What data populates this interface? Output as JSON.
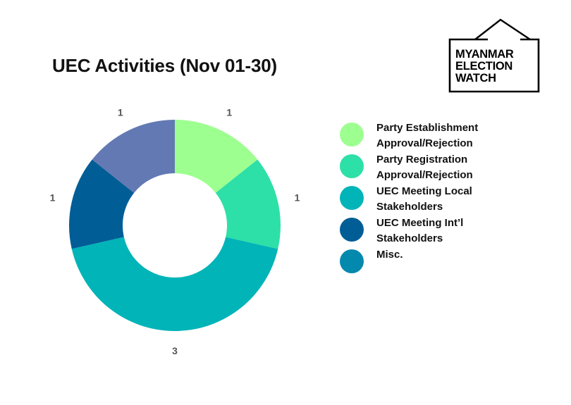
{
  "chart_data": {
    "type": "pie",
    "title": "UEC Activities (Nov 01-30)",
    "series": [
      {
        "name": "Party Establishment Approval/Rejection",
        "value": 1,
        "color": "#9eff91"
      },
      {
        "name": "Party Registration Approval/Rejection",
        "value": 1,
        "color": "#2de0a7"
      },
      {
        "name": "UEC Meeting Local Stakeholders",
        "value": 3,
        "color": "#01b4b8"
      },
      {
        "name": "UEC Meeting Int’l Stakeholders",
        "value": 1,
        "color": "#005d96"
      },
      {
        "name": "Misc.",
        "value": 1,
        "color": "#6379b3"
      }
    ],
    "legend_labels": [
      {
        "line1": "Party Establishment",
        "line2": "Approval/Rejection",
        "color": "#9eff91"
      },
      {
        "line1": "Party Registration",
        "line2": "Approval/Rejection",
        "color": "#2de0a7"
      },
      {
        "line1": "UEC Meeting Local",
        "line2": "Stakeholders",
        "color": "#01b4b8"
      },
      {
        "line1": "UEC Meeting Int’l",
        "line2": "Stakeholders",
        "color": "#005d96"
      },
      {
        "line1": "Misc.",
        "line2": "",
        "color": "#0289ad"
      }
    ],
    "legend_position": "right",
    "hole": "donut"
  },
  "logo": {
    "lines": [
      "MYANMAR",
      "ELECTION",
      "WATCH"
    ]
  }
}
